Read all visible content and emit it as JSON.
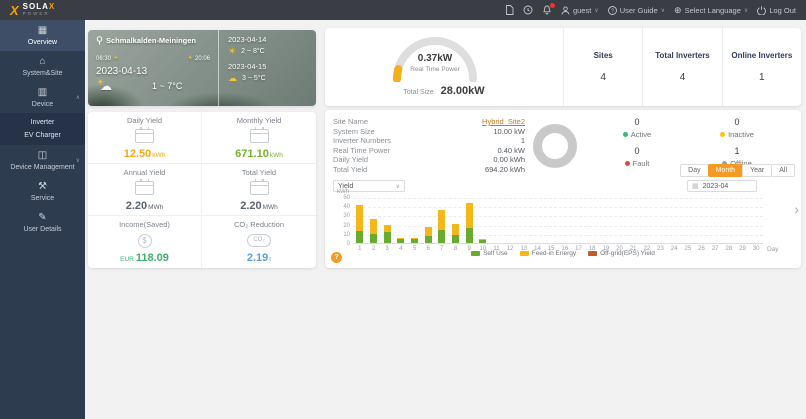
{
  "header": {
    "brand": {
      "main": "SOLA",
      "x": "X",
      "sub": "POWER"
    },
    "user": "guest",
    "user_guide": "User Guide",
    "select_language": "Select Language",
    "logout": "Log Out"
  },
  "icons": {
    "caret_down": "∨",
    "caret_up": "∧",
    "globe": "⊕",
    "chevron_right": "›",
    "sun": "☀",
    "cloud": "☁",
    "calendar": "▦",
    "dollar": "$",
    "co2": "CO₂",
    "help": "?"
  },
  "sidebar": {
    "items": [
      {
        "label": "Overview",
        "icon": "▦",
        "active": true
      },
      {
        "label": "System&Site",
        "icon": "⌂"
      },
      {
        "label": "Device",
        "icon": "▥",
        "expanded": true,
        "children": [
          {
            "label": "Inverter"
          },
          {
            "label": "EV Charger"
          }
        ]
      },
      {
        "label": "Device Management",
        "icon": "◫",
        "collapsible": true
      },
      {
        "label": "Service",
        "icon": "⚒"
      },
      {
        "label": "User Details",
        "icon": "✎"
      }
    ]
  },
  "weather": {
    "location": "Schmalkalden-Meiningen",
    "sunrise": "06:30",
    "sunset": "20:06",
    "today_date": "2023-04-13",
    "today_temp": "1 ~ 7°C",
    "forecast": [
      {
        "date": "2023-04-14",
        "icon": "sun",
        "temp": "2 ~ 8°C"
      },
      {
        "date": "2023-04-15",
        "icon": "cloud",
        "temp": "3 ~ 5°C"
      }
    ]
  },
  "stats": [
    {
      "label": "Daily Yield",
      "value": "12.50",
      "unit": "kWh",
      "color": "#f0a71c",
      "icon": "calendar"
    },
    {
      "label": "Monthly Yield",
      "value": "671.10",
      "unit": "kWh",
      "color": "#76b12d",
      "icon": "calendar"
    },
    {
      "label": "Annual Yield",
      "value": "2.20",
      "unit": "MWh",
      "color": "#5b6470",
      "icon": "calendar"
    },
    {
      "label": "Total Yield",
      "value": "2.20",
      "unit": "MWh",
      "color": "#5b6470",
      "icon": "calendar"
    },
    {
      "label": "Income(Saved)",
      "prefix": "EUR",
      "value": "118.09",
      "unit": "",
      "color": "#3fae6e",
      "icon": "coins"
    },
    {
      "label": "CO₂ Reduction",
      "value": "2.19",
      "unit": "t",
      "color": "#5d9fd4",
      "icon": "cloud"
    }
  ],
  "overview": {
    "gauge": {
      "value": "0.37kW",
      "label": "Real Time Power",
      "accent": "#f2b01e"
    },
    "total_size": {
      "label": "Total Size",
      "value": "28.00kW"
    },
    "summary": [
      {
        "label": "Sites",
        "value": "4"
      },
      {
        "label": "Total Inverters",
        "value": "4"
      },
      {
        "label": "Online Inverters",
        "value": "1"
      }
    ]
  },
  "site": {
    "rows": [
      {
        "label": "Site Name",
        "value": "Hybrid_Site2",
        "link": true
      },
      {
        "label": "System Size",
        "value": "10.00 kW"
      },
      {
        "label": "Inverter Numbers",
        "value": "1"
      },
      {
        "label": "Real Time Power",
        "value": "0.40 kW"
      },
      {
        "label": "Daily Yield",
        "value": "0.00 kWh"
      },
      {
        "label": "Total Yield",
        "value": "694.20 kWh"
      }
    ],
    "statuses": [
      {
        "label": "Active",
        "value": "0",
        "color": "#3cb878"
      },
      {
        "label": "Inactive",
        "value": "0",
        "color": "#f5c51c"
      },
      {
        "label": "Fault",
        "value": "0",
        "color": "#e54545"
      },
      {
        "label": "Offline",
        "value": "1",
        "color": "#9aa0a6"
      }
    ],
    "period_tabs": [
      {
        "label": "Day"
      },
      {
        "label": "Month",
        "active": true
      },
      {
        "label": "Year"
      },
      {
        "label": "All"
      }
    ],
    "metric_select": "Yield",
    "date_value": "2023-04"
  },
  "chart_data": {
    "type": "bar",
    "stacked": true,
    "x": [
      1,
      2,
      3,
      4,
      5,
      6,
      7,
      8,
      9,
      10,
      11,
      12,
      13,
      14,
      15,
      16,
      17,
      18,
      19,
      20,
      21,
      22,
      23,
      24,
      25,
      26,
      27,
      28,
      29,
      30
    ],
    "series": [
      {
        "name": "Self Use",
        "color": "#69aa2f",
        "values": [
          13,
          10,
          12,
          4,
          4,
          8,
          14,
          9,
          16,
          3,
          0,
          0,
          0,
          0,
          0,
          0,
          0,
          0,
          0,
          0,
          0,
          0,
          0,
          0,
          0,
          0,
          0,
          0,
          0,
          0
        ]
      },
      {
        "name": "Feed-in Energy",
        "color": "#f3b71a",
        "values": [
          28,
          16,
          8,
          2,
          2,
          9,
          22,
          12,
          28,
          1,
          0,
          0,
          0,
          0,
          0,
          0,
          0,
          0,
          0,
          0,
          0,
          0,
          0,
          0,
          0,
          0,
          0,
          0,
          0,
          0
        ]
      },
      {
        "name": "Off-grid(EPS) Yield",
        "color": "#bf5b28",
        "values": [
          0,
          0,
          0,
          0,
          0,
          0,
          0,
          0,
          0,
          0,
          0,
          0,
          0,
          0,
          0,
          0,
          0,
          0,
          0,
          0,
          0,
          0,
          0,
          0,
          0,
          0,
          0,
          0,
          0,
          0
        ]
      }
    ],
    "title": "",
    "xlabel": "Day",
    "ylabel": "kWh",
    "ylim": [
      0,
      50
    ],
    "yticks": [
      0,
      10,
      20,
      30,
      40,
      50
    ],
    "grid": true,
    "legend_position": "bottom"
  }
}
